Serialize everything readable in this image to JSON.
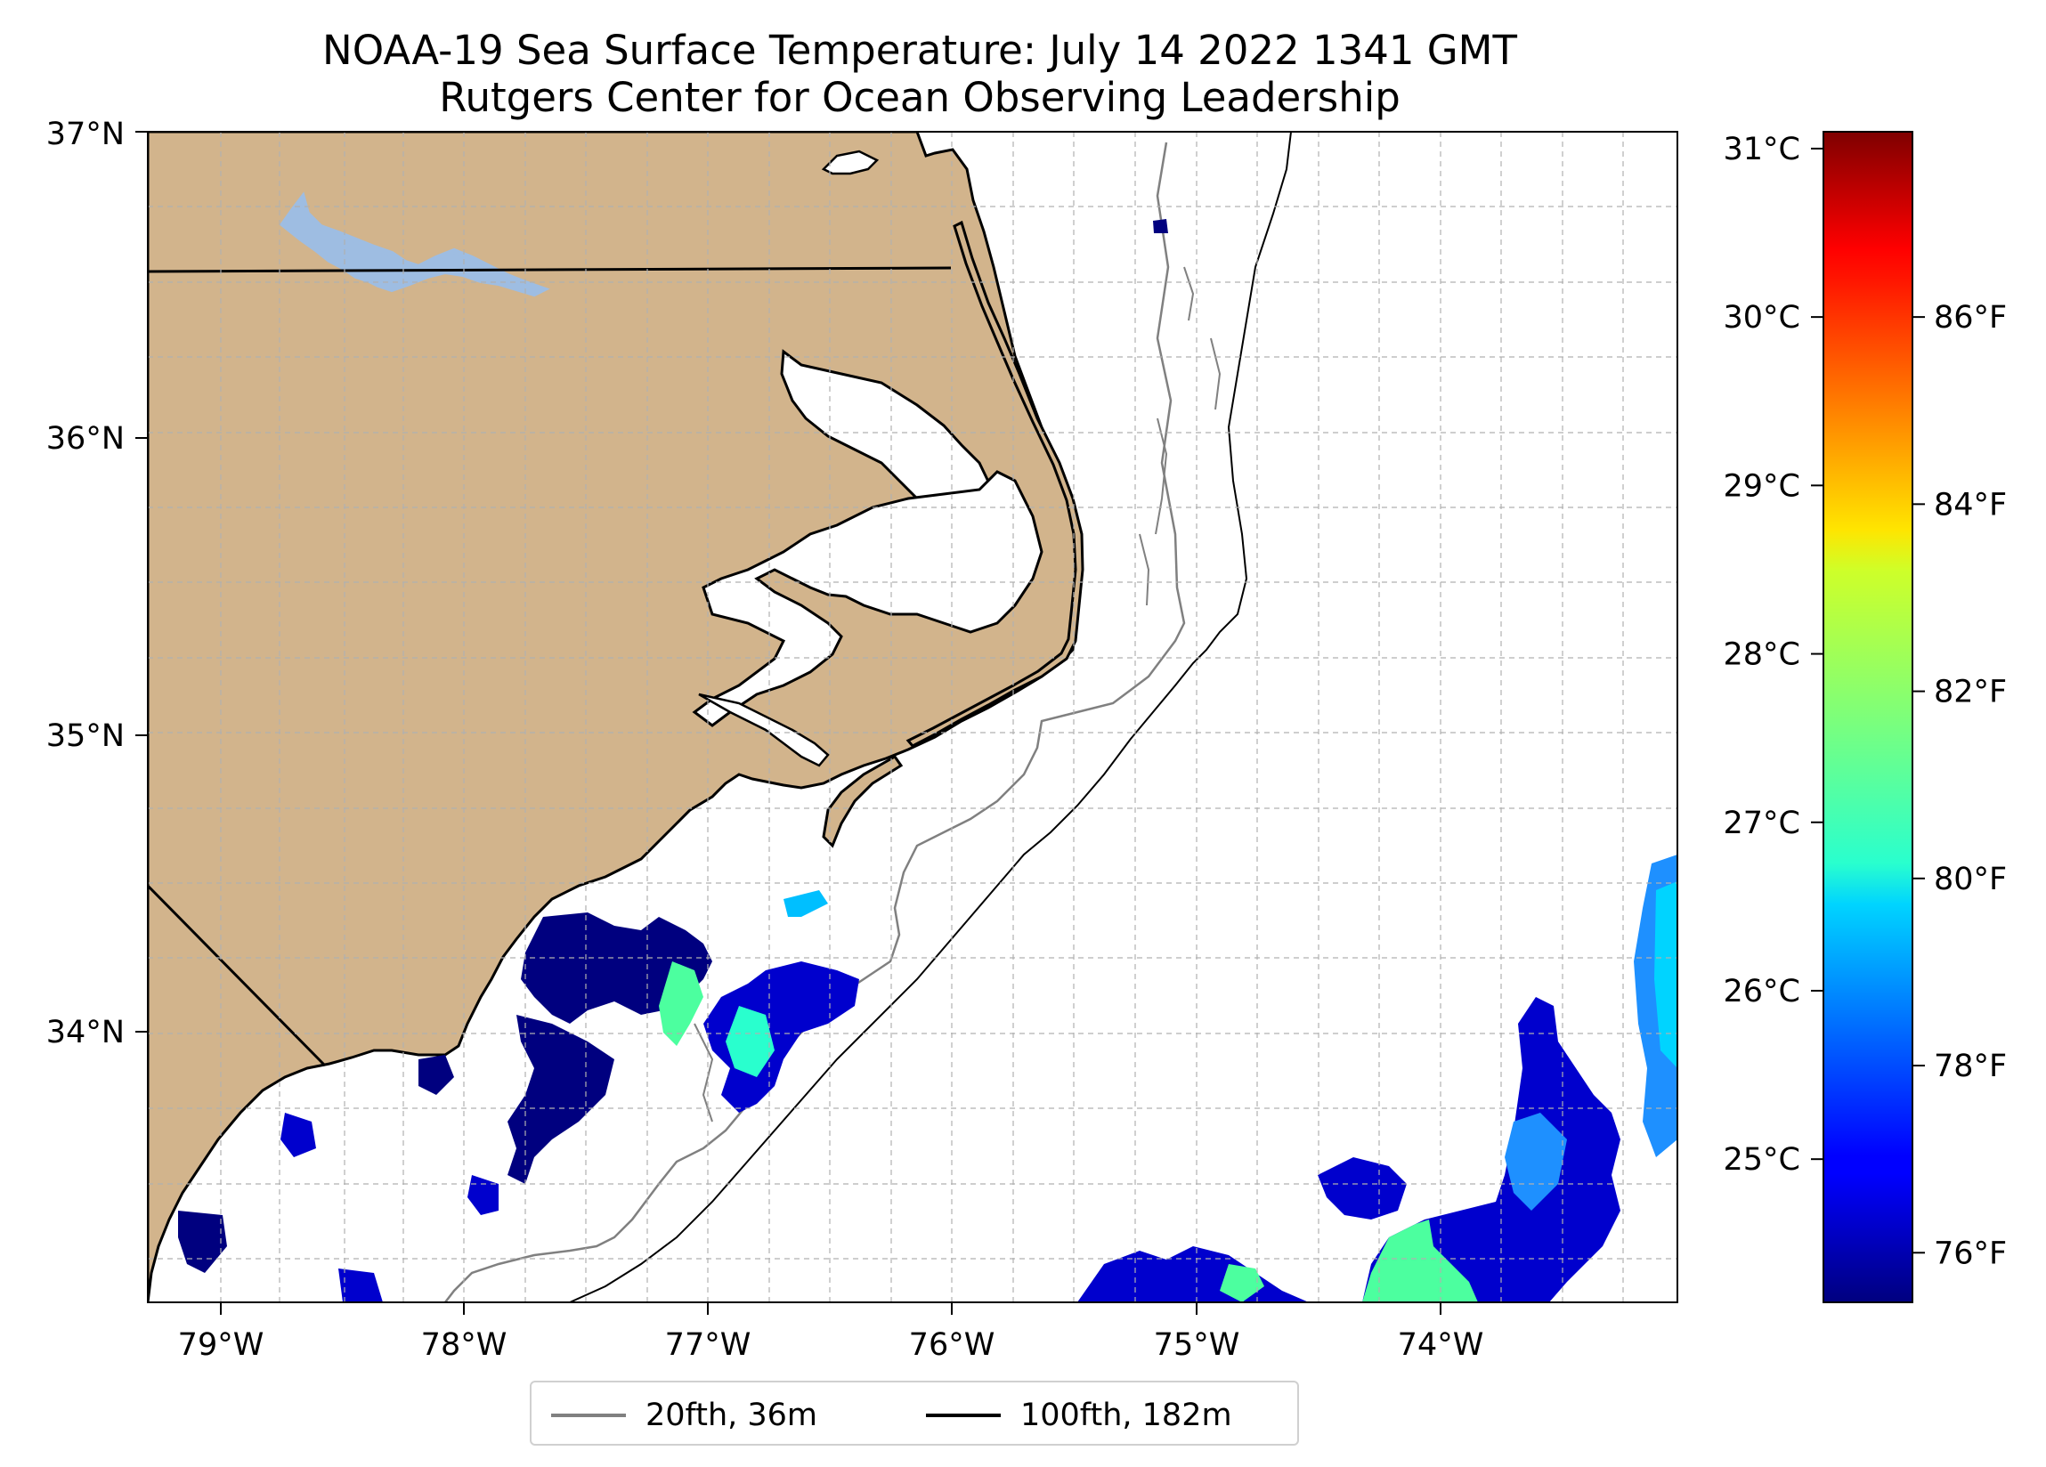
{
  "title": {
    "line1": "NOAA-19 Sea Surface Temperature: July 14 2022 1341 GMT",
    "line2": "Rutgers Center for Ocean Observing Leadership"
  },
  "map": {
    "lat_ticks": [
      "37°N",
      "36°N",
      "35°N",
      "34°N"
    ],
    "lon_ticks": [
      "79°W",
      "78°W",
      "77°W",
      "76°W",
      "75°W",
      "74°W"
    ],
    "extent": {
      "lon_min": -79.3,
      "lon_max": -73.05,
      "lat_min": 33.1,
      "lat_max": 37.0
    },
    "land_color": "#d2b48c",
    "lake_color": "#9ebde2",
    "grid": true
  },
  "legend": {
    "items": [
      {
        "label": "20fth, 36m",
        "color": "#808080"
      },
      {
        "label": "100fth, 182m",
        "color": "#000000"
      }
    ]
  },
  "colorbar": {
    "colormap": "jet",
    "celsius_ticks": [
      "31°C",
      "30°C",
      "29°C",
      "28°C",
      "27°C",
      "26°C",
      "25°C"
    ],
    "celsius_values": [
      31,
      30,
      29,
      28,
      27,
      26,
      25
    ],
    "fahrenheit_ticks": [
      "86°F",
      "84°F",
      "82°F",
      "80°F",
      "78°F",
      "76°F"
    ],
    "fahrenheit_values": [
      86,
      84,
      82,
      80,
      78,
      76
    ],
    "range_c": [
      24.15,
      31.1
    ]
  }
}
